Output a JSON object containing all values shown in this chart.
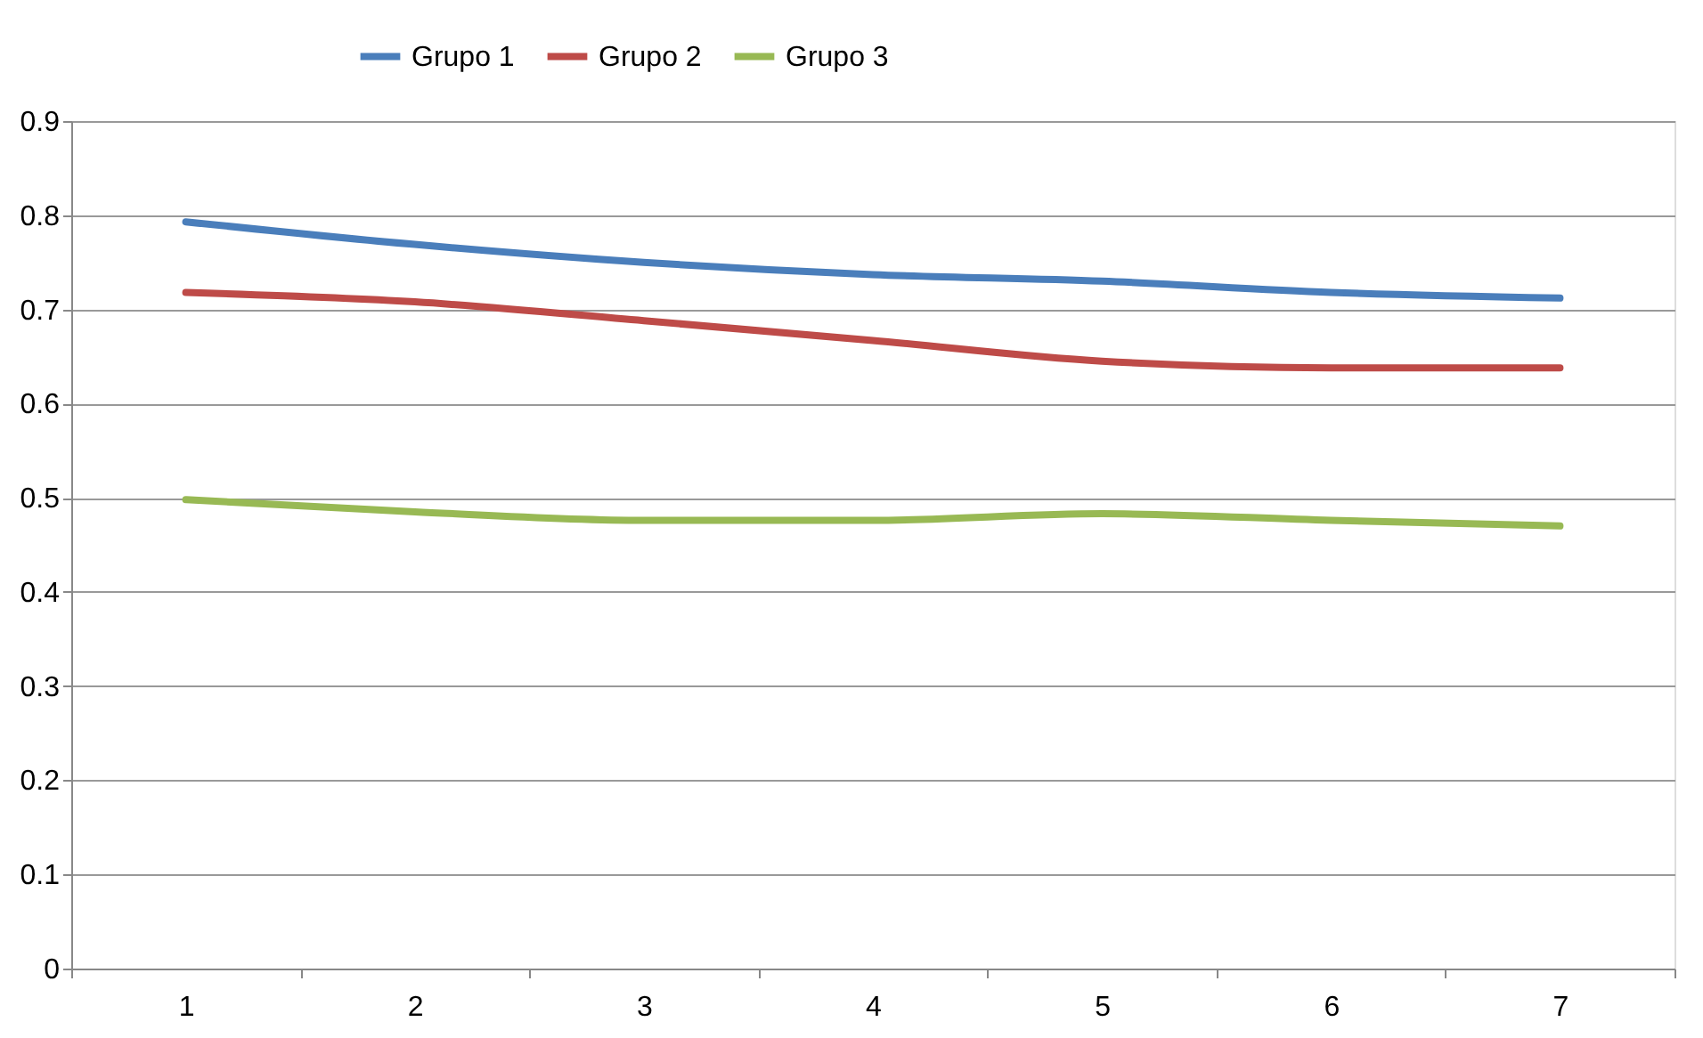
{
  "chart_data": {
    "type": "line",
    "categories": [
      "1",
      "2",
      "3",
      "4",
      "5",
      "6",
      "7"
    ],
    "series": [
      {
        "name": "Grupo 1",
        "color": "#4a7ebb",
        "values": [
          0.793,
          0.769,
          0.75,
          0.737,
          0.73,
          0.718,
          0.712
        ]
      },
      {
        "name": "Grupo 2",
        "color": "#be4b48",
        "values": [
          0.718,
          0.708,
          0.688,
          0.667,
          0.645,
          0.638,
          0.638
        ]
      },
      {
        "name": "Grupo 3",
        "color": "#98b954",
        "values": [
          0.498,
          0.485,
          0.476,
          0.476,
          0.483,
          0.476,
          0.47
        ]
      }
    ],
    "ylim": [
      0,
      0.9
    ],
    "yticks": [
      0,
      0.1,
      0.2,
      0.3,
      0.4,
      0.5,
      0.6,
      0.7,
      0.8,
      0.9
    ],
    "grid": "y",
    "legend": "top",
    "marker": "none",
    "line_style": "solid"
  }
}
